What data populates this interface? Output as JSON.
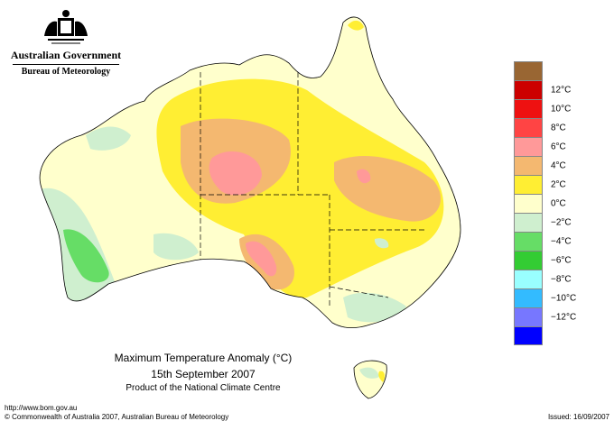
{
  "agency": {
    "government": "Australian Government",
    "bureau": "Bureau of Meteorology",
    "crest": "commonwealth-coat-of-arms-icon"
  },
  "map": {
    "region": "Australia",
    "title": "Maximum Temperature Anomaly (°C)",
    "date": "15th September 2007",
    "product": "Product of the National Climate Centre"
  },
  "legend": [
    {
      "label": "",
      "color": "#996633"
    },
    {
      "label": "12°C",
      "color": "#cc0000"
    },
    {
      "label": "10°C",
      "color": "#ee1111"
    },
    {
      "label": "8°C",
      "color": "#ff4444"
    },
    {
      "label": "6°C",
      "color": "#ff9999"
    },
    {
      "label": "4°C",
      "color": "#f4b870"
    },
    {
      "label": "2°C",
      "color": "#ffee33"
    },
    {
      "label": "0°C",
      "color": "#ffffcc"
    },
    {
      "label": "−2°C",
      "color": "#cfefcf"
    },
    {
      "label": "−4°C",
      "color": "#66dd66"
    },
    {
      "label": "−6°C",
      "color": "#33cc33"
    },
    {
      "label": "−8°C",
      "color": "#99ffff"
    },
    {
      "label": "−10°C",
      "color": "#33bbff"
    },
    {
      "label": "−12°C",
      "color": "#7777ff"
    },
    {
      "label": "",
      "color": "#0000ff"
    }
  ],
  "footer": {
    "url": "http://www.bom.gov.au",
    "copyright": "© Commonwealth of Australia 2007, Australian Bureau of Meteorology",
    "issued": "Issued: 16/09/2007"
  }
}
